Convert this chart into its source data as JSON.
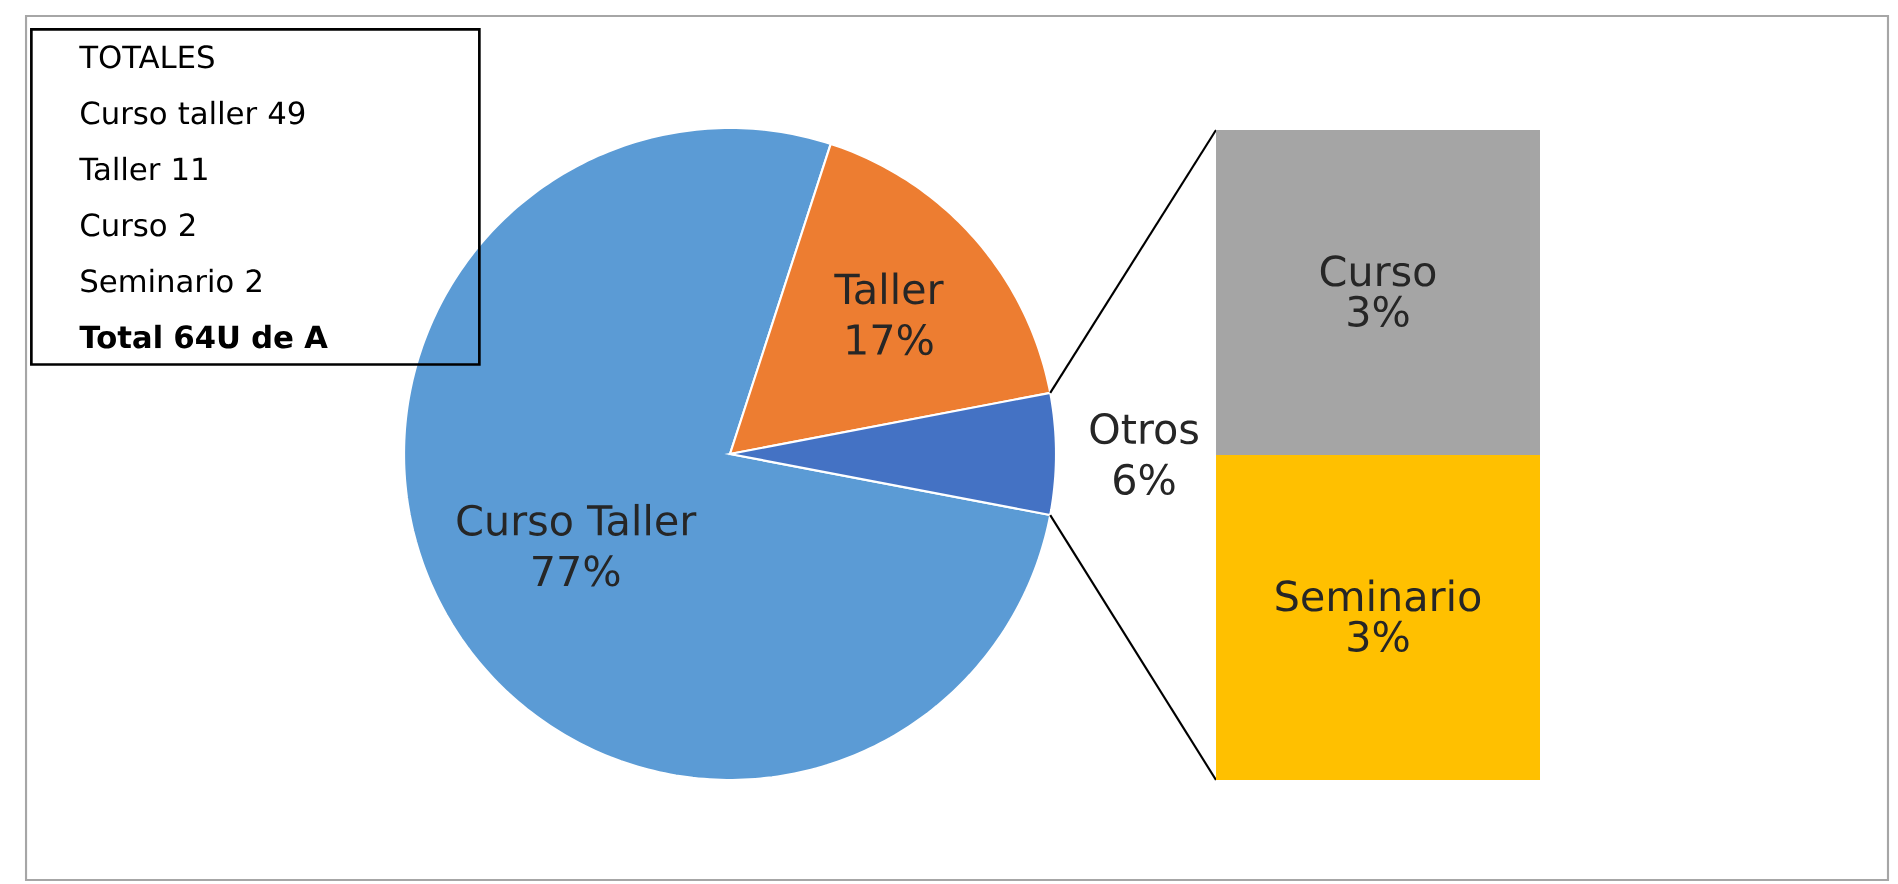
{
  "chart_data": [
    {
      "type": "pie",
      "categories": [
        "Curso Taller",
        "Taller",
        "Otros"
      ],
      "values": [
        77,
        17,
        6
      ],
      "colors": [
        "#5b9bd5",
        "#ed7d31",
        "#4472c4"
      ],
      "value_labels": [
        "77%",
        "17%",
        "6%"
      ],
      "annotations": [
        "TOTALES",
        "Curso taller 49",
        "Taller 11",
        "Curso 2",
        "Seminario 2",
        "Total 64U de A"
      ]
    },
    {
      "type": "bar",
      "stacked": true,
      "categories": [
        null
      ],
      "series": [
        {
          "name": "Seminario",
          "color": "#ffc000",
          "values": [
            3
          ],
          "value_labels": [
            "3%"
          ]
        },
        {
          "name": "Curso",
          "color": "#a5a5a5",
          "values": [
            3
          ],
          "value_labels": [
            "3%"
          ]
        }
      ]
    }
  ]
}
